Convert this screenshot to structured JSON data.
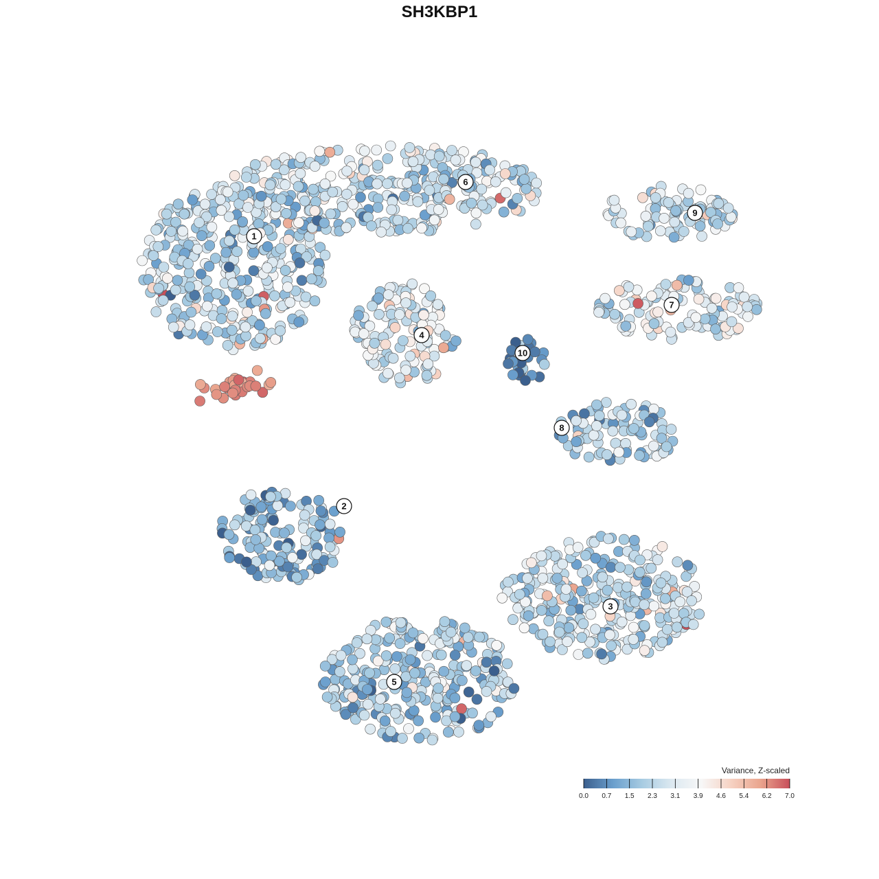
{
  "chart_data": {
    "type": "scatter",
    "title": "SH3KBP1",
    "legend": {
      "title": "Variance, Z-scaled",
      "ticks": [
        "0.0",
        "0.7",
        "1.5",
        "2.3",
        "3.1",
        "3.9",
        "4.6",
        "5.4",
        "6.2",
        "7.0"
      ],
      "range": [
        0,
        7
      ],
      "placement": "bottom-right",
      "colors": [
        "#3b5f8d",
        "#6a9fcd",
        "#a8cce2",
        "#dde9f1",
        "#f7f7f7",
        "#f6d2c3",
        "#eaa58e",
        "#c84f5a"
      ]
    },
    "clusters": [
      {
        "label": "1",
        "mean_value": 2.3
      },
      {
        "label": "2",
        "mean_value": 1.6
      },
      {
        "label": "3",
        "mean_value": 2.5
      },
      {
        "label": "4",
        "mean_value": 3.2
      },
      {
        "label": "5",
        "mean_value": 2.0
      },
      {
        "label": "6",
        "mean_value": 2.6
      },
      {
        "label": "7",
        "mean_value": 3.1
      },
      {
        "label": "8",
        "mean_value": 2.2
      },
      {
        "label": "9",
        "mean_value": 2.6
      },
      {
        "label": "10",
        "mean_value": 0.5
      }
    ],
    "axes": "none",
    "grid": false
  }
}
